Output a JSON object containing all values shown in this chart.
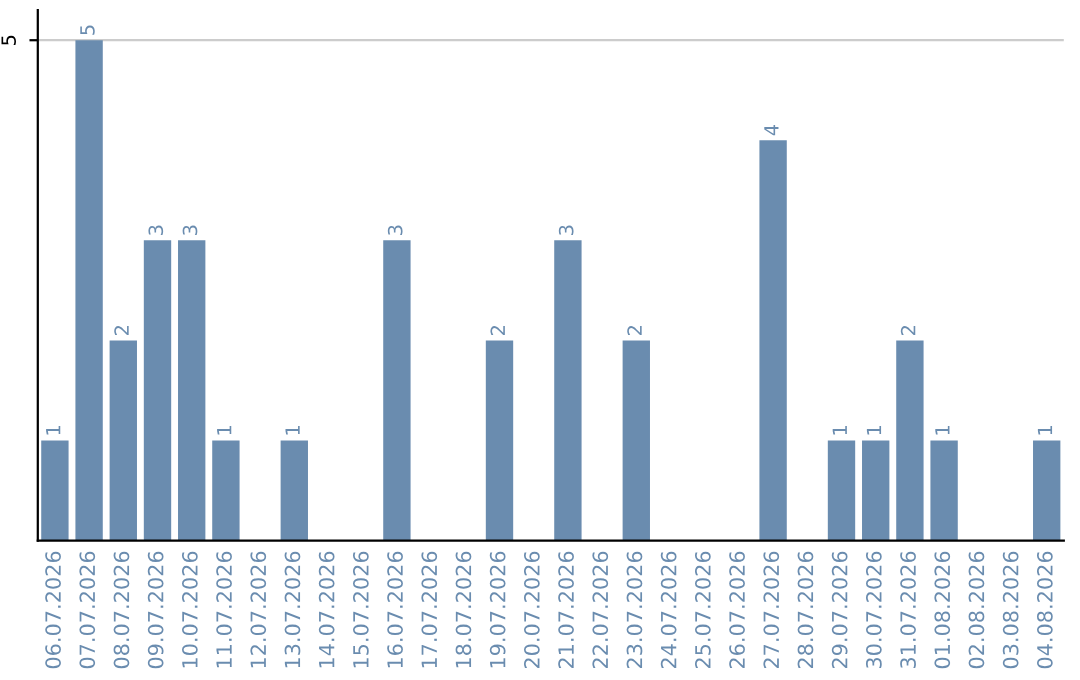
{
  "chart_data": {
    "type": "bar",
    "categories": [
      "06.07.2026",
      "07.07.2026",
      "08.07.2026",
      "09.07.2026",
      "10.07.2026",
      "11.07.2026",
      "12.07.2026",
      "13.07.2026",
      "14.07.2026",
      "15.07.2026",
      "16.07.2026",
      "17.07.2026",
      "18.07.2026",
      "19.07.2026",
      "20.07.2026",
      "21.07.2026",
      "22.07.2026",
      "23.07.2026",
      "24.07.2026",
      "25.07.2026",
      "26.07.2026",
      "27.07.2026",
      "28.07.2026",
      "29.07.2026",
      "30.07.2026",
      "31.07.2026",
      "01.08.2026",
      "02.08.2026",
      "03.08.2026",
      "04.08.2026"
    ],
    "values": [
      1,
      5,
      2,
      3,
      3,
      1,
      0,
      1,
      0,
      0,
      3,
      0,
      0,
      2,
      0,
      3,
      0,
      2,
      0,
      0,
      0,
      4,
      0,
      1,
      1,
      2,
      1,
      0,
      0,
      1
    ],
    "value_labels": [
      "1",
      "5",
      "2",
      "3",
      "3",
      "1",
      null,
      "1",
      null,
      null,
      "3",
      null,
      null,
      "2",
      null,
      "3",
      null,
      "2",
      null,
      null,
      null,
      "4",
      null,
      "1",
      "1",
      "2",
      "1",
      null,
      null,
      "1"
    ],
    "color": "#6a8caf",
    "ylim": [
      0,
      5.3
    ],
    "yticks": [
      5
    ],
    "grid": "y"
  }
}
